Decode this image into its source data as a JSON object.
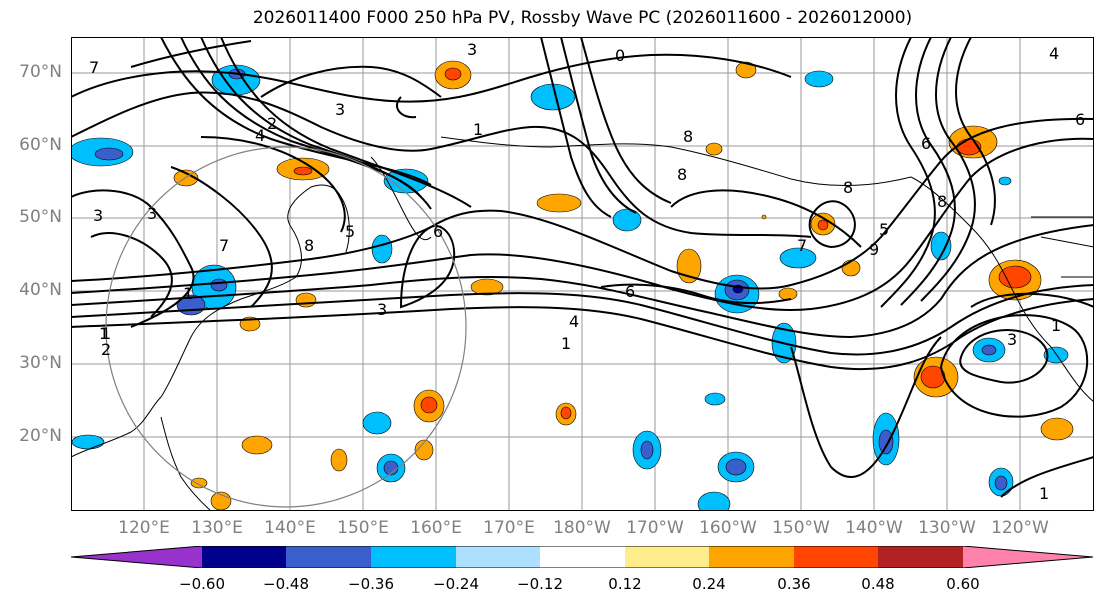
{
  "title": "2026011400 F000 250 hPa PV, Rossby Wave PC (2026011600 - 2026012000)",
  "lat_labels": [
    "70°N",
    "60°N",
    "50°N",
    "40°N",
    "30°N",
    "20°N"
  ],
  "lon_labels": [
    "120°E",
    "130°E",
    "140°E",
    "150°E",
    "160°E",
    "170°E",
    "180°W",
    "170°W",
    "160°W",
    "150°W",
    "140°W",
    "130°W",
    "120°W"
  ],
  "contour_labels": [
    "3",
    "0",
    "1",
    "2",
    "4",
    "3",
    "1",
    "4",
    "1",
    "3",
    "6",
    "8",
    "7",
    "6",
    "8",
    "8",
    "5",
    "7",
    "8",
    "3",
    "1",
    "2",
    "3",
    "1",
    "4",
    "6",
    "1",
    "3",
    "5",
    "6",
    "8",
    "9",
    "7",
    "1"
  ],
  "colorbar": {
    "tick_labels": [
      "−0.60",
      "−0.48",
      "−0.36",
      "−0.24",
      "−0.12",
      "0.12",
      "0.24",
      "0.36",
      "0.48",
      "0.60"
    ],
    "colors": [
      "#9932CC",
      "#00008B",
      "#3A5FCD",
      "#00BFFF",
      "#ADDFFF",
      "#FFFFFF",
      "#FFEC8B",
      "#FFA500",
      "#FF4500",
      "#B22222",
      "#FF82AB"
    ]
  }
}
